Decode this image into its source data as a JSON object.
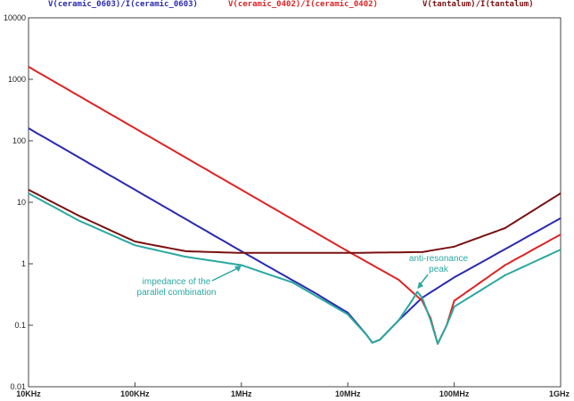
{
  "chart_data": {
    "type": "line",
    "x_scale": "log",
    "y_scale": "log",
    "xlim": [
      10000,
      1000000000
    ],
    "ylim": [
      0.01,
      10000
    ],
    "x_ticks": [
      {
        "value": 10000,
        "label": "10KHz"
      },
      {
        "value": 100000,
        "label": "100KHz"
      },
      {
        "value": 1000000,
        "label": "1MHz"
      },
      {
        "value": 10000000,
        "label": "10MHz"
      },
      {
        "value": 100000000,
        "label": "100MHz"
      },
      {
        "value": 1000000000,
        "label": "1GHz"
      }
    ],
    "y_ticks": [
      {
        "value": 0.01,
        "label": "0.01"
      },
      {
        "value": 0.1,
        "label": "0.1"
      },
      {
        "value": 1,
        "label": "1"
      },
      {
        "value": 10,
        "label": "10"
      },
      {
        "value": 100,
        "label": "100"
      },
      {
        "value": 1000,
        "label": "1000"
      },
      {
        "value": 10000,
        "label": "10000"
      }
    ],
    "grid": false,
    "legend_position": "top",
    "series": [
      {
        "name": "V(ceramic_0603)/I(ceramic_0603)",
        "color": "#2a2ab0",
        "points": [
          [
            10000,
            160
          ],
          [
            100000,
            16
          ],
          [
            1000000,
            1.6
          ],
          [
            5000000,
            0.33
          ],
          [
            10000000,
            0.16
          ],
          [
            15000000,
            0.07
          ],
          [
            17000000,
            0.052
          ],
          [
            20000000,
            0.058
          ],
          [
            30000000,
            0.12
          ],
          [
            50000000,
            0.28
          ],
          [
            100000000,
            0.6
          ],
          [
            1000000000,
            5.5
          ]
        ]
      },
      {
        "name": "V(ceramic_0402)/I(ceramic_0402)",
        "color": "#dd2424",
        "points": [
          [
            10000,
            1600
          ],
          [
            100000,
            160
          ],
          [
            1000000,
            16
          ],
          [
            10000000,
            1.6
          ],
          [
            30000000,
            0.55
          ],
          [
            50000000,
            0.25
          ],
          [
            60000000,
            0.13
          ],
          [
            70000000,
            0.05
          ],
          [
            85000000,
            0.1
          ],
          [
            100000000,
            0.25
          ],
          [
            300000000,
            0.95
          ],
          [
            1000000000,
            3.0
          ]
        ]
      },
      {
        "name": "V(tantalum)/I(tantalum)",
        "color": "#7a1010",
        "points": [
          [
            10000,
            16
          ],
          [
            30000,
            6
          ],
          [
            100000,
            2.3
          ],
          [
            300000,
            1.6
          ],
          [
            1000000,
            1.5
          ],
          [
            10000000,
            1.5
          ],
          [
            50000000,
            1.55
          ],
          [
            100000000,
            1.9
          ],
          [
            300000000,
            3.8
          ],
          [
            1000000000,
            14
          ]
        ]
      },
      {
        "name": "",
        "color": "#2aa8a0",
        "points": [
          [
            10000,
            14
          ],
          [
            30000,
            5
          ],
          [
            100000,
            2.0
          ],
          [
            300000,
            1.3
          ],
          [
            1000000,
            0.95
          ],
          [
            3000000,
            0.5
          ],
          [
            10000000,
            0.15
          ],
          [
            15000000,
            0.07
          ],
          [
            17000000,
            0.052
          ],
          [
            20000000,
            0.058
          ],
          [
            30000000,
            0.12
          ],
          [
            40000000,
            0.25
          ],
          [
            45000000,
            0.35
          ],
          [
            50000000,
            0.28
          ],
          [
            60000000,
            0.12
          ],
          [
            70000000,
            0.05
          ],
          [
            85000000,
            0.1
          ],
          [
            100000000,
            0.2
          ],
          [
            300000000,
            0.65
          ],
          [
            1000000000,
            1.7
          ]
        ]
      }
    ],
    "annotations": [
      {
        "text": [
          "impedance of the",
          "parallel combination"
        ],
        "color": "#2aa8a0",
        "target": [
          1000000,
          1.0
        ]
      },
      {
        "text": [
          "anti-resonance",
          "peak"
        ],
        "color": "#2aa8a0",
        "target": [
          45000000,
          0.38
        ]
      }
    ]
  }
}
